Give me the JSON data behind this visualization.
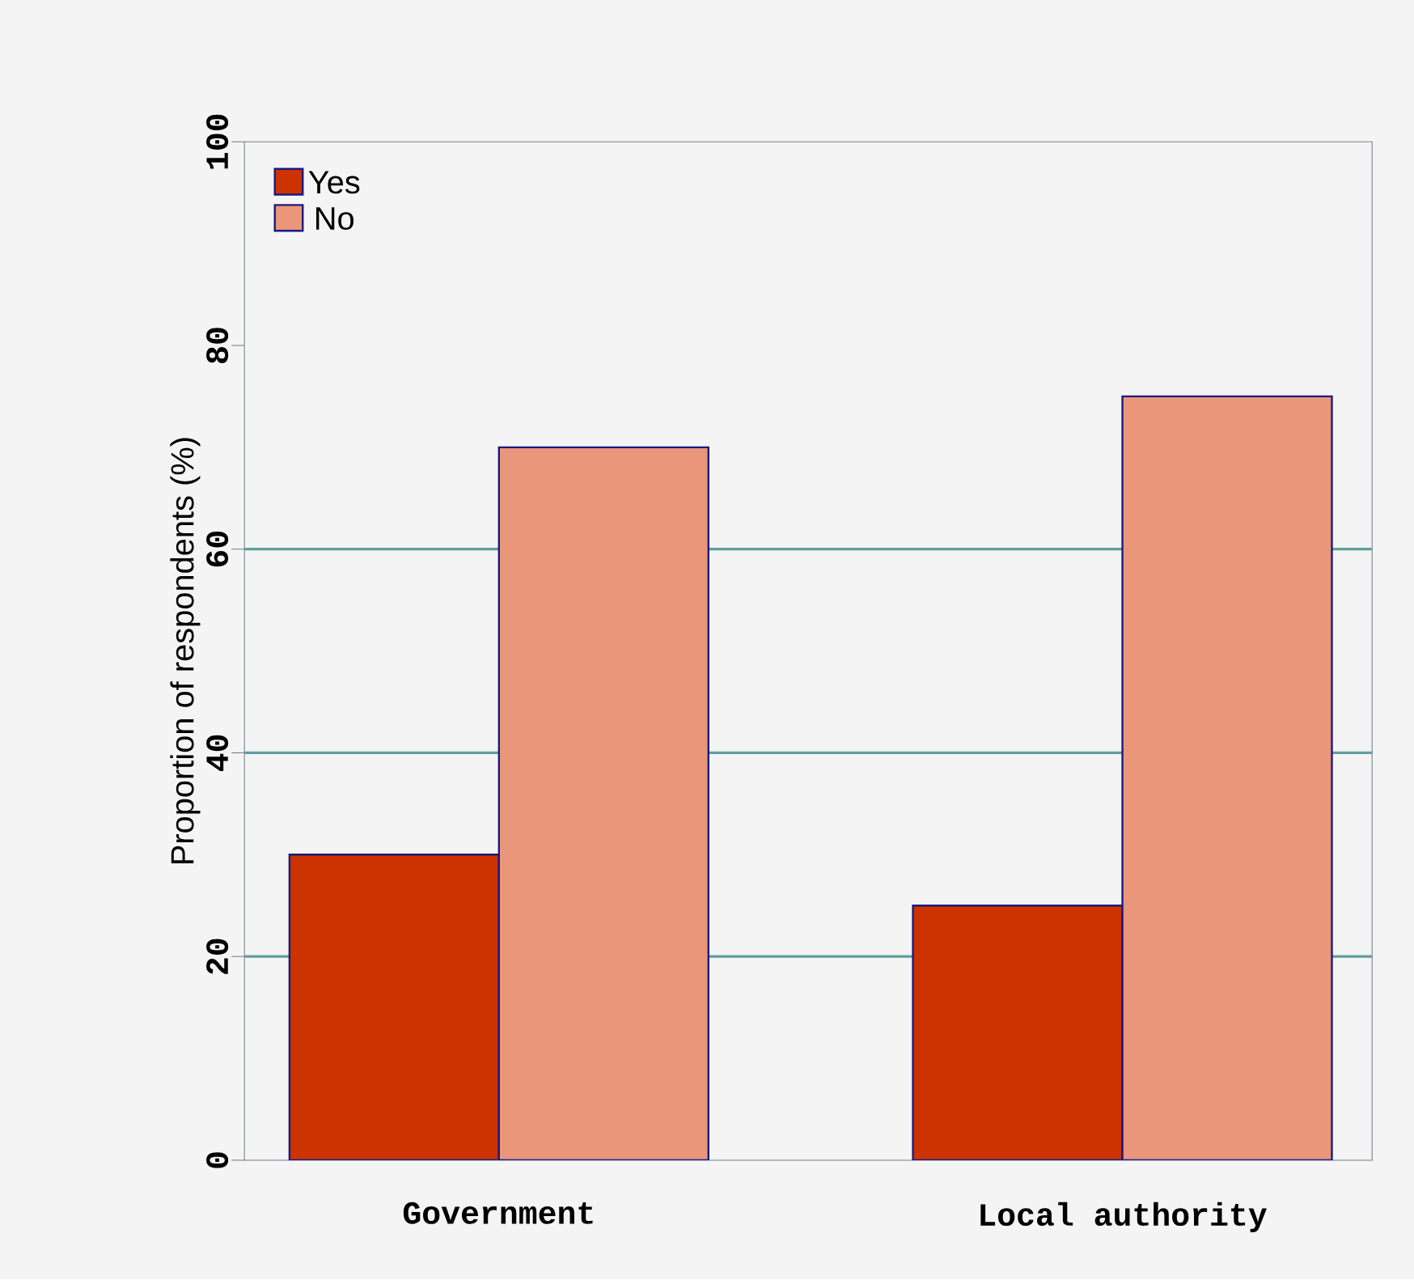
{
  "chart_data": {
    "type": "bar",
    "ylabel": "Proportion of respondents (%)",
    "categories": [
      "Government",
      "Local authority"
    ],
    "series": [
      {
        "name": "Yes",
        "color": "#cc3300",
        "values": [
          30,
          25
        ]
      },
      {
        "name": "No",
        "color": "#e9967a",
        "values": [
          70,
          75
        ]
      }
    ],
    "ylim": [
      0,
      100
    ],
    "yticks": [
      0,
      20,
      40,
      60,
      80,
      100
    ],
    "ref_lines": [
      {
        "axis": "y",
        "value": 20,
        "color": "#5f9ea0"
      },
      {
        "axis": "y",
        "value": 40,
        "color": "#5f9ea0"
      },
      {
        "axis": "y",
        "value": 60,
        "color": "#5f9ea0"
      }
    ],
    "legend": "top left"
  }
}
